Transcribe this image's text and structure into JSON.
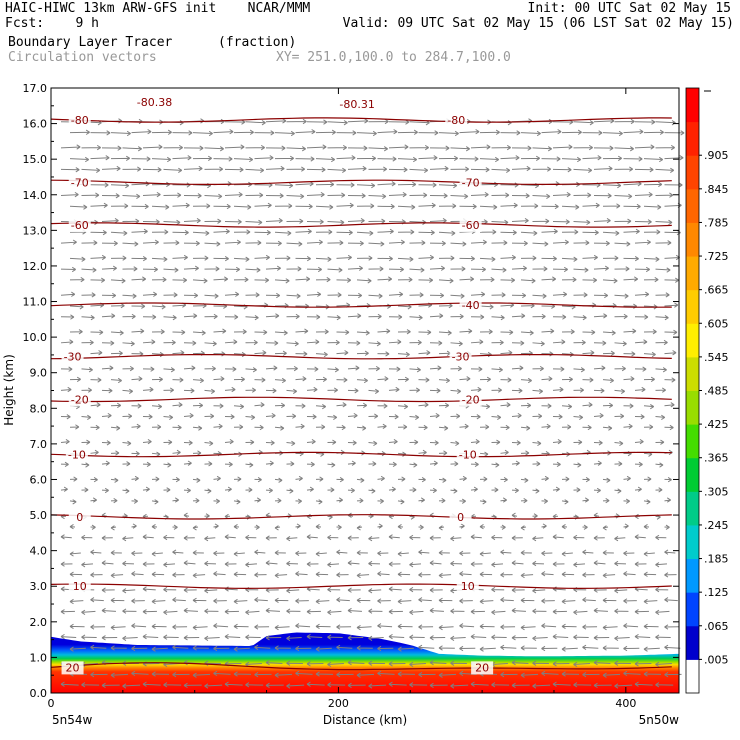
{
  "header": {
    "title": "HAIC-HIWC 13km ARW-GFS init    NCAR/MMM",
    "fcst": "Fcst:    9 h",
    "init": "Init: 00 UTC Sat 02 May 15",
    "valid": "Valid: 09 UTC Sat 02 May 15 (06 LST Sat 02 May 15)",
    "field": "Boundary Layer Tracer",
    "units": "(fraction)",
    "vectors": "Circulation vectors",
    "xy": "XY= 251.0,100.0 to 284.7,100.0"
  },
  "chart_data": {
    "type": "heatmap",
    "title": "Boundary Layer Tracer",
    "units": "(fraction)",
    "xlabel": "Distance (km)",
    "ylabel": "Height (km)",
    "xlim": [
      0,
      437
    ],
    "ylim": [
      0,
      17
    ],
    "x_ticks": [
      0,
      200,
      400
    ],
    "y_ticks": [
      "0.0",
      "1.0",
      "2.0",
      "3.0",
      "4.0",
      "5.0",
      "6.0",
      "7.0",
      "8.0",
      "9.0",
      "10.0",
      "11.0",
      "12.0",
      "13.0",
      "14.0",
      "15.0",
      "16.0",
      "17.0"
    ],
    "x_endpoint_labels": {
      "left": "5n54w",
      "right": "5n50w"
    },
    "colorbar": {
      "labels": [
        ".005",
        ".065",
        ".125",
        ".185",
        ".245",
        ".305",
        ".365",
        ".425",
        ".485",
        ".545",
        ".605",
        ".665",
        ".725",
        ".785",
        ".845",
        ".905"
      ],
      "colors": [
        "#ffffff",
        "#0000cc",
        "#0044ff",
        "#0099ff",
        "#00cccc",
        "#00cc88",
        "#00cc33",
        "#44dd00",
        "#99dd00",
        "#ccdd00",
        "#ffee00",
        "#ffcc00",
        "#ffaa00",
        "#ff8800",
        "#ff6600",
        "#ff4400",
        "#ff2200",
        "#ff0000"
      ]
    },
    "tracer_top_km": [
      [
        0,
        1.58
      ],
      [
        20,
        1.45
      ],
      [
        60,
        1.35
      ],
      [
        140,
        1.32
      ],
      [
        150,
        1.6
      ],
      [
        170,
        1.7
      ],
      [
        200,
        1.68
      ],
      [
        230,
        1.52
      ],
      [
        250,
        1.35
      ],
      [
        270,
        1.1
      ],
      [
        300,
        1.05
      ],
      [
        340,
        1.03
      ],
      [
        400,
        1.05
      ],
      [
        437,
        1.1
      ]
    ],
    "contour_field": "temperature (C)",
    "contours": [
      {
        "value": 20,
        "labels": [
          "20",
          "20"
        ],
        "label_x": [
          15,
          300
        ],
        "height_km": 0.72
      },
      {
        "value": 10,
        "labels": [
          "10",
          "10"
        ],
        "label_x": [
          20,
          290
        ],
        "height_km": 3.0
      },
      {
        "value": 0,
        "labels": [
          "0",
          "0"
        ],
        "label_x": [
          20,
          285
        ],
        "height_km": 4.95
      },
      {
        "value": -10,
        "labels": [
          "-10",
          "-10"
        ],
        "label_x": [
          18,
          290
        ],
        "height_km": 6.7
      },
      {
        "value": -20,
        "labels": [
          "-20",
          "-20"
        ],
        "label_x": [
          20,
          292
        ],
        "height_km": 8.25
      },
      {
        "value": -30,
        "labels": [
          "-30",
          "-30"
        ],
        "label_x": [
          15,
          285
        ],
        "height_km": 9.45
      },
      {
        "value": -40,
        "labels": [
          "-40"
        ],
        "label_x": [
          292
        ],
        "height_km": 10.9
      },
      {
        "value": -60,
        "labels": [
          "-60",
          "-60"
        ],
        "label_x": [
          20,
          292
        ],
        "height_km": 13.15
      },
      {
        "value": -70,
        "labels": [
          "-70",
          "-70"
        ],
        "label_x": [
          20,
          292
        ],
        "height_km": 14.35
      },
      {
        "value": -80,
        "labels": [
          "-80",
          "-80"
        ],
        "label_x": [
          20,
          282
        ],
        "height_km": 16.1
      }
    ],
    "extrema_labels": [
      {
        "text": "-80.38",
        "x": 72,
        "height_km": 16.6
      },
      {
        "text": "-80.31",
        "x": 213,
        "height_km": 16.55
      }
    ],
    "vectors": {
      "lower_layer": {
        "below_km": 4.6,
        "direction": "westward"
      },
      "upper_layer": {
        "above_km": 5.2,
        "direction": "eastward"
      }
    }
  }
}
